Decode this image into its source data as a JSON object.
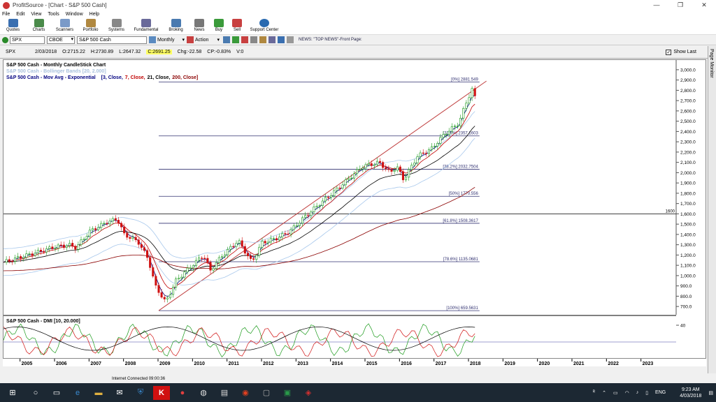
{
  "window": {
    "title": "ProfitSource - [Chart - S&P 500 Cash]",
    "controls": [
      "—",
      "❐",
      "✕"
    ]
  },
  "menu": [
    "File",
    "Edit",
    "View",
    "Tools",
    "Window",
    "Help"
  ],
  "toolbar": [
    "Quotes",
    "Charts",
    "Scanners",
    "Portfolio",
    "Systems",
    "Fundamental",
    "Broking",
    "News",
    "Buy",
    "Sell",
    "Support Center"
  ],
  "nav": {
    "symbol": "SPX",
    "exchange": "CBOE",
    "name": "S&P 500 Cash",
    "period": "Monthly",
    "action": "Action",
    "news": "NEWS: \"TOP NEWS\"-Front Page:"
  },
  "quote": {
    "symbol": "SPX",
    "date": "2/03/2018",
    "open": "O:2715.22",
    "high": "H:2730.89",
    "low": "L:2647.32",
    "close": "C:2691.25",
    "chg": "Chg:-22.58",
    "cp": "CP:-0.83%",
    "vol": "V:0",
    "show_last": "Show Last"
  },
  "side_panel": "Page Monitor",
  "chart_data": {
    "type": "candlestick",
    "title": "S&P 500 Cash - Monthly CandleStick Chart",
    "indicators": [
      "S&P 500 Cash - Bollinger Bands [20, 2.000]",
      "S&P 500 Cash - Mov Avg - Exponential"
    ],
    "ma_params": [
      {
        "t": "[3, Close,",
        "c": "#000080"
      },
      {
        "t": "7, Close,",
        "c": "#c00000"
      },
      {
        "t": "21, Close,",
        "c": "#000000"
      },
      {
        "t": "200, Close]",
        "c": "#8b0000"
      }
    ],
    "y_ticks": [
      700,
      800,
      900,
      1000,
      1100,
      1200,
      1300,
      1400,
      1500,
      1600,
      1700,
      1800,
      1900,
      2000,
      2100,
      2200,
      2300,
      2400,
      2500,
      2600,
      2700,
      2800,
      2900,
      3000
    ],
    "ylim": [
      640,
      3040
    ],
    "x_labels": [
      "2005",
      "2006",
      "2007",
      "2008",
      "2009",
      "2010",
      "2011",
      "2012",
      "2013",
      "2014",
      "2015",
      "2016",
      "2017",
      "2018",
      "2019",
      "2020",
      "2021",
      "2022",
      "2023"
    ],
    "xlim": [
      2004.5,
      2024.0
    ],
    "fib": [
      {
        "label": "[0%] 2881.549",
        "v": 2881.549
      },
      {
        "label": "[23.6%] 2357.1603",
        "v": 2357.1603
      },
      {
        "label": "[38.2%] 2032.7504",
        "v": 2032.7504
      },
      {
        "label": "[50%] 1770.556",
        "v": 1770.556
      },
      {
        "label": "[61.8%] 1508.3617",
        "v": 1508.3617
      },
      {
        "label": "[78.6%] 1135.0681",
        "v": 1135.0681
      },
      {
        "label": "[100%] 659.5631",
        "v": 659.5631
      }
    ],
    "fib_x": [
      2009.0,
      2018.3
    ],
    "hline": {
      "v": 1600,
      "label": "1600"
    },
    "trend_up": [
      [
        2009.0,
        660
      ],
      [
        2018.5,
        2890
      ]
    ],
    "keypoints": [
      [
        2004.5,
        1130
      ],
      [
        2005.0,
        1180
      ],
      [
        2005.5,
        1230
      ],
      [
        2006.0,
        1280
      ],
      [
        2006.4,
        1300
      ],
      [
        2006.6,
        1270
      ],
      [
        2007.0,
        1430
      ],
      [
        2007.5,
        1520
      ],
      [
        2007.8,
        1550
      ],
      [
        2008.0,
        1400
      ],
      [
        2008.4,
        1330
      ],
      [
        2008.7,
        1160
      ],
      [
        2008.9,
        900
      ],
      [
        2009.2,
        740
      ],
      [
        2009.5,
        950
      ],
      [
        2010.0,
        1110
      ],
      [
        2010.3,
        1200
      ],
      [
        2010.5,
        1050
      ],
      [
        2010.8,
        1180
      ],
      [
        2011.3,
        1340
      ],
      [
        2011.7,
        1130
      ],
      [
        2012.0,
        1320
      ],
      [
        2012.4,
        1360
      ],
      [
        2012.8,
        1430
      ],
      [
        2013.2,
        1560
      ],
      [
        2013.6,
        1680
      ],
      [
        2014.0,
        1790
      ],
      [
        2014.5,
        1940
      ],
      [
        2014.9,
        2060
      ],
      [
        2015.4,
        2100
      ],
      [
        2015.7,
        2000
      ],
      [
        2015.9,
        2060
      ],
      [
        2016.1,
        1930
      ],
      [
        2016.5,
        2160
      ],
      [
        2016.9,
        2230
      ],
      [
        2017.3,
        2380
      ],
      [
        2017.7,
        2480
      ],
      [
        2017.9,
        2670
      ],
      [
        2018.1,
        2820
      ],
      [
        2018.2,
        2690
      ]
    ],
    "dmi_title": "S&P 500 Cash - DMI [10, 20.000]",
    "dmi_tick": "40"
  },
  "taskbar": {
    "status": "Internet Connected 09:00:36",
    "time": "9:23 AM",
    "date": "4/03/2018",
    "lang": "ENG"
  }
}
